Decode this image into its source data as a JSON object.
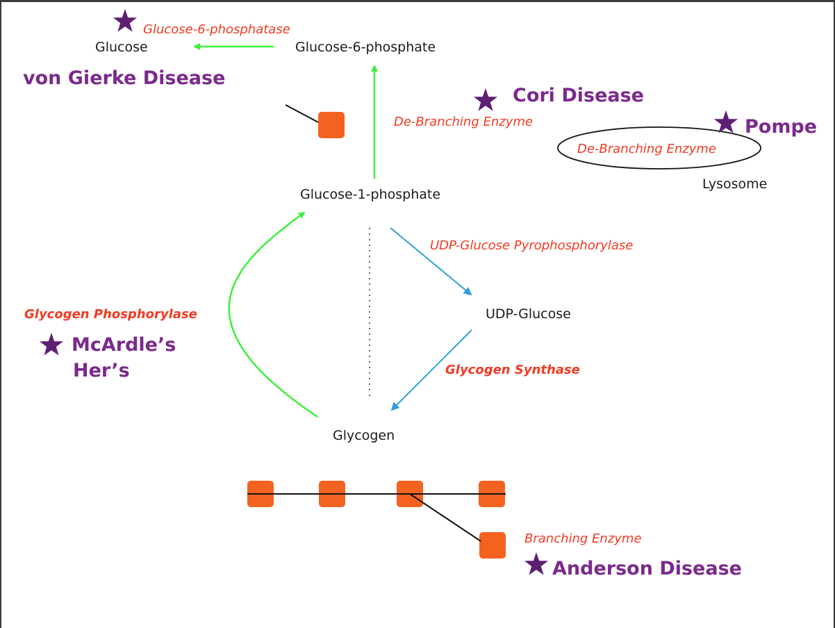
{
  "nodes": {
    "glucose": "Glucose",
    "glucose_6_phosphate": "Glucose-6-phosphate",
    "glucose_1_phosphate": "Glucose-1-phosphate",
    "udp_glucose": "UDP-Glucose",
    "glycogen": "Glycogen",
    "lysosome": "Lysosome"
  },
  "enzymes": {
    "glucose_6_phosphatase": "Glucose-6-phosphatase",
    "debranching": "De-Branching Enzyme",
    "debranching_lysosomal": "De-Branching Enzyme",
    "udp_pyrophosphorylase": "UDP-Glucose Pyrophosphorylase",
    "glycogen_phosphorylase": "Glycogen Phosphorylase",
    "glycogen_synthase": "Glycogen Synthase",
    "branching": "Branching Enzyme"
  },
  "diseases": {
    "von_gierke": "von Gierke Disease",
    "cori": "Cori Disease",
    "pompe": "Pompe",
    "mcardle": "McArdle’s",
    "hers": "Her’s",
    "anderson": "Anderson Disease"
  },
  "colors": {
    "green_arrow": "#3cf03c",
    "blue_arrow": "#2f9fd6",
    "enzyme_text": "#f03a22",
    "disease_text": "#7b2a8c",
    "star": "#5e1f73",
    "glucose_unit": "#f4621f"
  },
  "icons": [
    "star-icon",
    "glucose-unit-block"
  ]
}
